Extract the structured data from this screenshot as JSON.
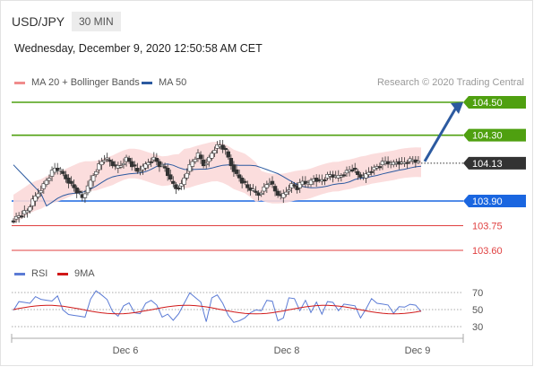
{
  "header": {
    "pair": "USD/JPY",
    "timeframe": "30 MIN",
    "datetime": "Wednesday, December 9, 2020 12:50:58 AM CET"
  },
  "legend": {
    "ma20_bb": {
      "label": "MA 20 + Bollinger Bands",
      "color": "#f08c8c"
    },
    "ma50": {
      "label": "MA 50",
      "color": "#2c5aa0"
    },
    "rsi": {
      "label": "RSI",
      "color": "#5b7bd5"
    },
    "ma9": {
      "label": "9MA",
      "color": "#d01818"
    }
  },
  "copyright": "Research © 2020 Trading Central",
  "chart_data": {
    "type": "candlestick",
    "x_ticks": [
      "Dec 6",
      "Dec 8",
      "Dec 9"
    ],
    "current_price": "104.13",
    "levels": [
      {
        "label": "104.50",
        "value": 104.5,
        "kind": "resistance",
        "color": "#4fa010"
      },
      {
        "label": "104.30",
        "value": 104.3,
        "kind": "resistance",
        "color": "#4fa010"
      },
      {
        "label": "103.90",
        "value": 103.9,
        "kind": "support",
        "color": "#1a66e0"
      },
      {
        "label": "103.75",
        "value": 103.75,
        "kind": "support",
        "color": "#e04040"
      },
      {
        "label": "103.60",
        "value": 103.6,
        "kind": "support",
        "color": "#e04040"
      }
    ],
    "forecast_target": 104.5,
    "price_path": [
      103.78,
      103.8,
      103.82,
      103.84,
      103.9,
      103.95,
      104.0,
      104.05,
      104.1,
      104.08,
      104.04,
      104.0,
      103.96,
      103.92,
      103.98,
      104.06,
      104.12,
      104.16,
      104.14,
      104.1,
      104.12,
      104.16,
      104.12,
      104.08,
      104.1,
      104.14,
      104.16,
      104.12,
      104.1,
      104.02,
      103.98,
      104.0,
      104.08,
      104.14,
      104.18,
      104.12,
      104.16,
      104.22,
      104.24,
      104.2,
      104.12,
      104.06,
      104.02,
      103.98,
      103.96,
      103.94,
      103.98,
      104.02,
      103.96,
      103.92,
      103.96,
      104.0,
      103.98,
      104.02,
      104.0,
      104.04,
      104.02,
      104.04,
      104.06,
      104.04,
      104.06,
      104.08,
      104.1,
      104.06,
      104.04,
      104.08,
      104.1,
      104.12,
      104.14,
      104.12,
      104.14,
      104.13,
      104.14,
      104.15,
      104.13
    ],
    "rsi_axis": {
      "ticks": [
        70,
        50,
        30
      ]
    }
  }
}
